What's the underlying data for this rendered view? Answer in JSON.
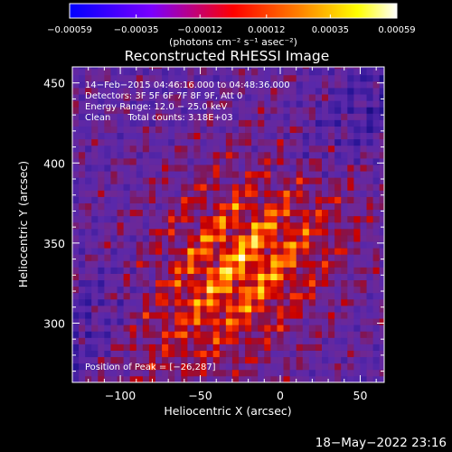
{
  "chart_data": {
    "type": "heatmap",
    "title": "Reconstructed RHESSI Image",
    "xlabel": "Heliocentric X (arcsec)",
    "ylabel": "Heliocentric Y (arcsec)",
    "xlim": [
      -130,
      65
    ],
    "ylim": [
      263,
      460
    ],
    "xticks": [
      -100,
      -50,
      0,
      50
    ],
    "xtick_labels": [
      "−100",
      "−50",
      "0",
      "50"
    ],
    "yticks": [
      300,
      350,
      400,
      450
    ],
    "ytick_labels": [
      "300",
      "350",
      "400",
      "450"
    ],
    "colorbar": {
      "range": [
        -0.00059,
        0.00059
      ],
      "ticks": [
        -0.00059,
        -0.00035,
        -0.00012,
        0.00012,
        0.00035,
        0.00059
      ],
      "tick_labels": [
        "−0.00059",
        "−0.00035",
        "−0.00012",
        "0.00012",
        "0.00035",
        "0.00059"
      ],
      "units_label": "(photons cm⁻² s⁻¹ asec⁻²)",
      "colors": [
        "#0000ff",
        "#7a00ff",
        "#ff0000",
        "#ff8000",
        "#ffff00",
        "#ffffff"
      ]
    },
    "info_lines": [
      "14−Feb−2015 04:46:16.000 to 04:48:36.000",
      "Detectors: 3F 5F 6F 7F 8F 9F, Att 0",
      "Energy Range: 12.0 − 25.0 keV",
      "Clean      Total counts: 3.18E+03"
    ],
    "peak_label": "Position of Peak = [−26,287]",
    "peak_position": [
      -26,
      287
    ],
    "timestamp": "18−May−2022 23:16",
    "grid": false
  }
}
